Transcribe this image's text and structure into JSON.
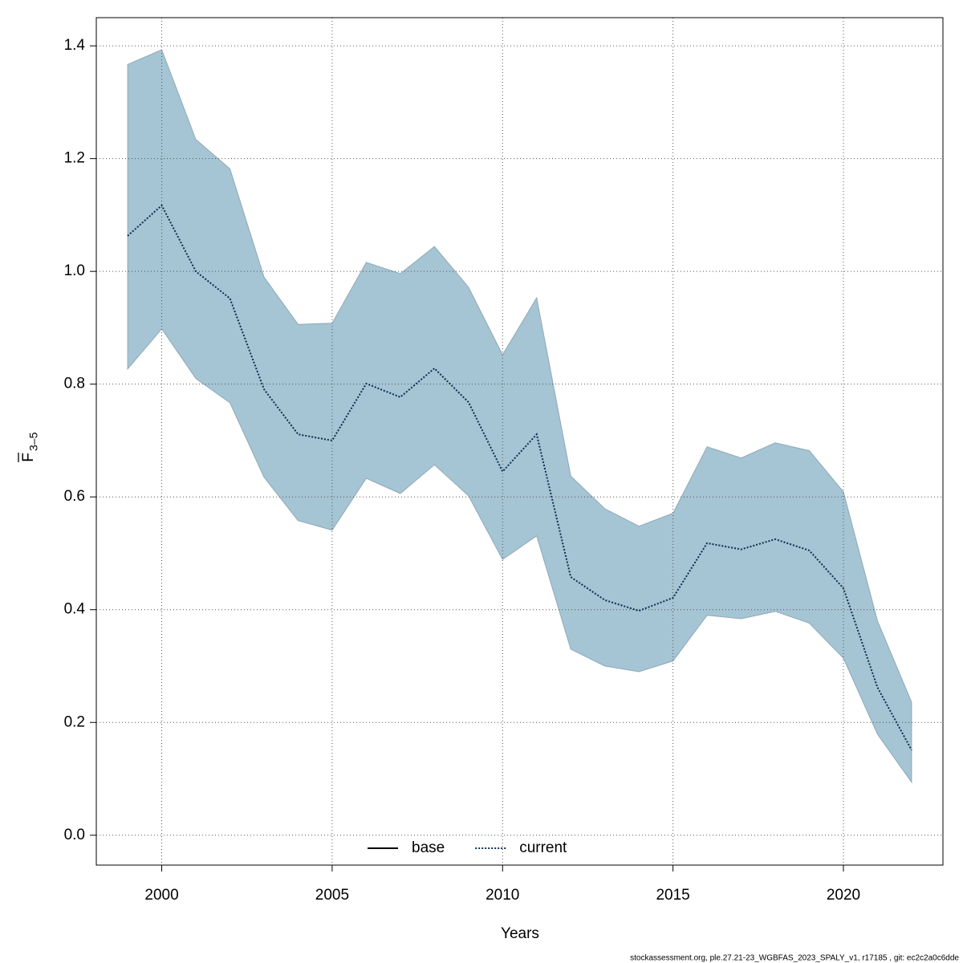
{
  "chart_data": {
    "type": "line",
    "xlabel": "Years",
    "ylabel": "F",
    "ylabel_subscript": "3–5",
    "footer": "stockassessment.org, ple.27.21-23_WGBFAS_2023_SPALY_v1, r17185 , git: ec2c2a0c6dde",
    "x": [
      1999,
      2000,
      2001,
      2002,
      2003,
      2004,
      2005,
      2006,
      2007,
      2008,
      2009,
      2010,
      2011,
      2012,
      2013,
      2014,
      2015,
      2016,
      2017,
      2018,
      2019,
      2020,
      2021,
      2022
    ],
    "series": [
      {
        "name": "current",
        "color": "#0b2f4e",
        "dash": "dotted",
        "values": [
          1.063,
          1.117,
          1.0,
          0.952,
          0.791,
          0.711,
          0.7,
          0.801,
          0.777,
          0.828,
          0.768,
          0.645,
          0.711,
          0.458,
          0.417,
          0.398,
          0.421,
          0.518,
          0.507,
          0.525,
          0.505,
          0.438,
          0.262,
          0.151
        ]
      }
    ],
    "band": {
      "color": "#a5c4d4",
      "edge": "#8fa9b8",
      "upper": [
        1.367,
        1.393,
        1.234,
        1.182,
        0.99,
        0.906,
        0.908,
        1.016,
        0.996,
        1.044,
        0.972,
        0.852,
        0.953,
        0.637,
        0.579,
        0.548,
        0.571,
        0.689,
        0.669,
        0.696,
        0.682,
        0.609,
        0.38,
        0.236
      ],
      "lower": [
        0.827,
        0.898,
        0.81,
        0.767,
        0.635,
        0.558,
        0.541,
        0.633,
        0.606,
        0.657,
        0.602,
        0.489,
        0.531,
        0.33,
        0.3,
        0.29,
        0.309,
        0.39,
        0.384,
        0.397,
        0.376,
        0.314,
        0.179,
        0.094
      ]
    },
    "legend": [
      {
        "name": "base",
        "color": "#000000",
        "dash": "solid"
      },
      {
        "name": "current",
        "color": "#0b2f4e",
        "dash": "dotted"
      }
    ],
    "legend_position": "bottom",
    "xlim": [
      1998.08,
      2022.92
    ],
    "ylim": [
      -0.053,
      1.45
    ],
    "xticks": [
      2000,
      2005,
      2010,
      2015,
      2020
    ],
    "yticks": [
      {
        "value": 0,
        "label": "0.0"
      },
      0.2,
      0.4,
      0.6,
      0.8,
      {
        "value": 1,
        "label": "1.0"
      },
      1.2,
      1.4
    ],
    "grid": true
  }
}
